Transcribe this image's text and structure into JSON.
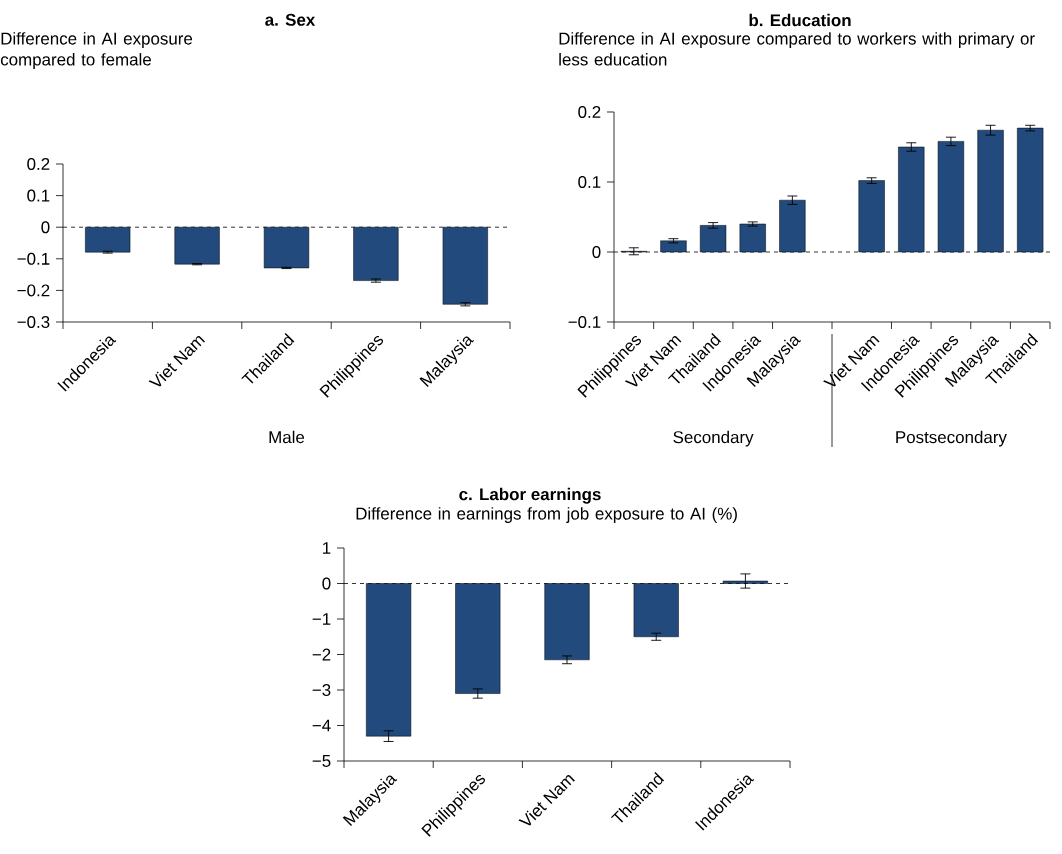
{
  "chart_data": [
    {
      "type": "bar",
      "title": "a. Sex",
      "ylabel": "Difference in AI exposure compared to female",
      "categories": [
        "Indonesia",
        "Viet Nam",
        "Thailand",
        "Philippines",
        "Malaysia"
      ],
      "values": [
        -0.079,
        -0.117,
        -0.129,
        -0.169,
        -0.244
      ],
      "errors": [
        0.003,
        0.002,
        0.002,
        0.005,
        0.005
      ],
      "color": "#224a7c",
      "ylim": [
        -0.3,
        0.2
      ],
      "yticks": [
        {
          "value": -0.3,
          "label": "−0.3"
        },
        {
          "value": -0.2,
          "label": "−0.2"
        },
        {
          "value": -0.1,
          "label": "−0.1"
        },
        0,
        0.1,
        0.2
      ],
      "ref_lines": [
        {
          "axis": "y",
          "value": 0,
          "line_style": "dashed"
        }
      ],
      "annotations": [
        "Male"
      ]
    },
    {
      "type": "bar",
      "title": "b. Education",
      "ylabel": "Difference in AI exposure compared to workers with primary or less education",
      "categories": [
        "Philippines",
        "Viet Nam",
        "Thailand",
        "Indonesia",
        "Malaysia",
        null,
        "Viet Nam",
        "Indonesia",
        "Philippines",
        "Malaysia",
        "Thailand"
      ],
      "values": [
        0.001,
        0.016,
        0.038,
        0.04,
        0.074,
        null,
        0.102,
        0.15,
        0.158,
        0.174,
        0.177
      ],
      "errors": [
        0.005,
        0.003,
        0.004,
        0.003,
        0.006,
        null,
        0.004,
        0.006,
        0.006,
        0.007,
        0.004
      ],
      "color": "#224a7c",
      "ylim": [
        -0.1,
        0.2
      ],
      "yticks": [
        {
          "value": -0.1,
          "label": "−0.1"
        },
        0,
        0.1,
        0.2
      ],
      "ref_lines": [
        {
          "axis": "y",
          "value": 0,
          "line_style": "dashed"
        }
      ],
      "annotations": [
        "Secondary",
        "Postsecondary"
      ]
    },
    {
      "type": "bar",
      "title": "c. Labor earnings",
      "ylabel": "Difference in earnings from job exposure to AI (%)",
      "categories": [
        "Malaysia",
        "Philippines",
        "Viet Nam",
        "Thailand",
        "Indonesia"
      ],
      "values": [
        -4.3,
        -3.1,
        -2.15,
        -1.5,
        0.07
      ],
      "errors": [
        0.15,
        0.13,
        0.11,
        0.1,
        0.2
      ],
      "color": "#224a7c",
      "ylim": [
        -5,
        1
      ],
      "yticks": [
        {
          "value": -5,
          "label": "−5"
        },
        {
          "value": -4,
          "label": "−4"
        },
        {
          "value": -3,
          "label": "−3"
        },
        {
          "value": -2,
          "label": "−2"
        },
        {
          "value": -1,
          "label": "−1"
        },
        0,
        1
      ],
      "ref_lines": [
        {
          "axis": "y",
          "value": 0,
          "line_style": "dashed"
        }
      ]
    }
  ]
}
